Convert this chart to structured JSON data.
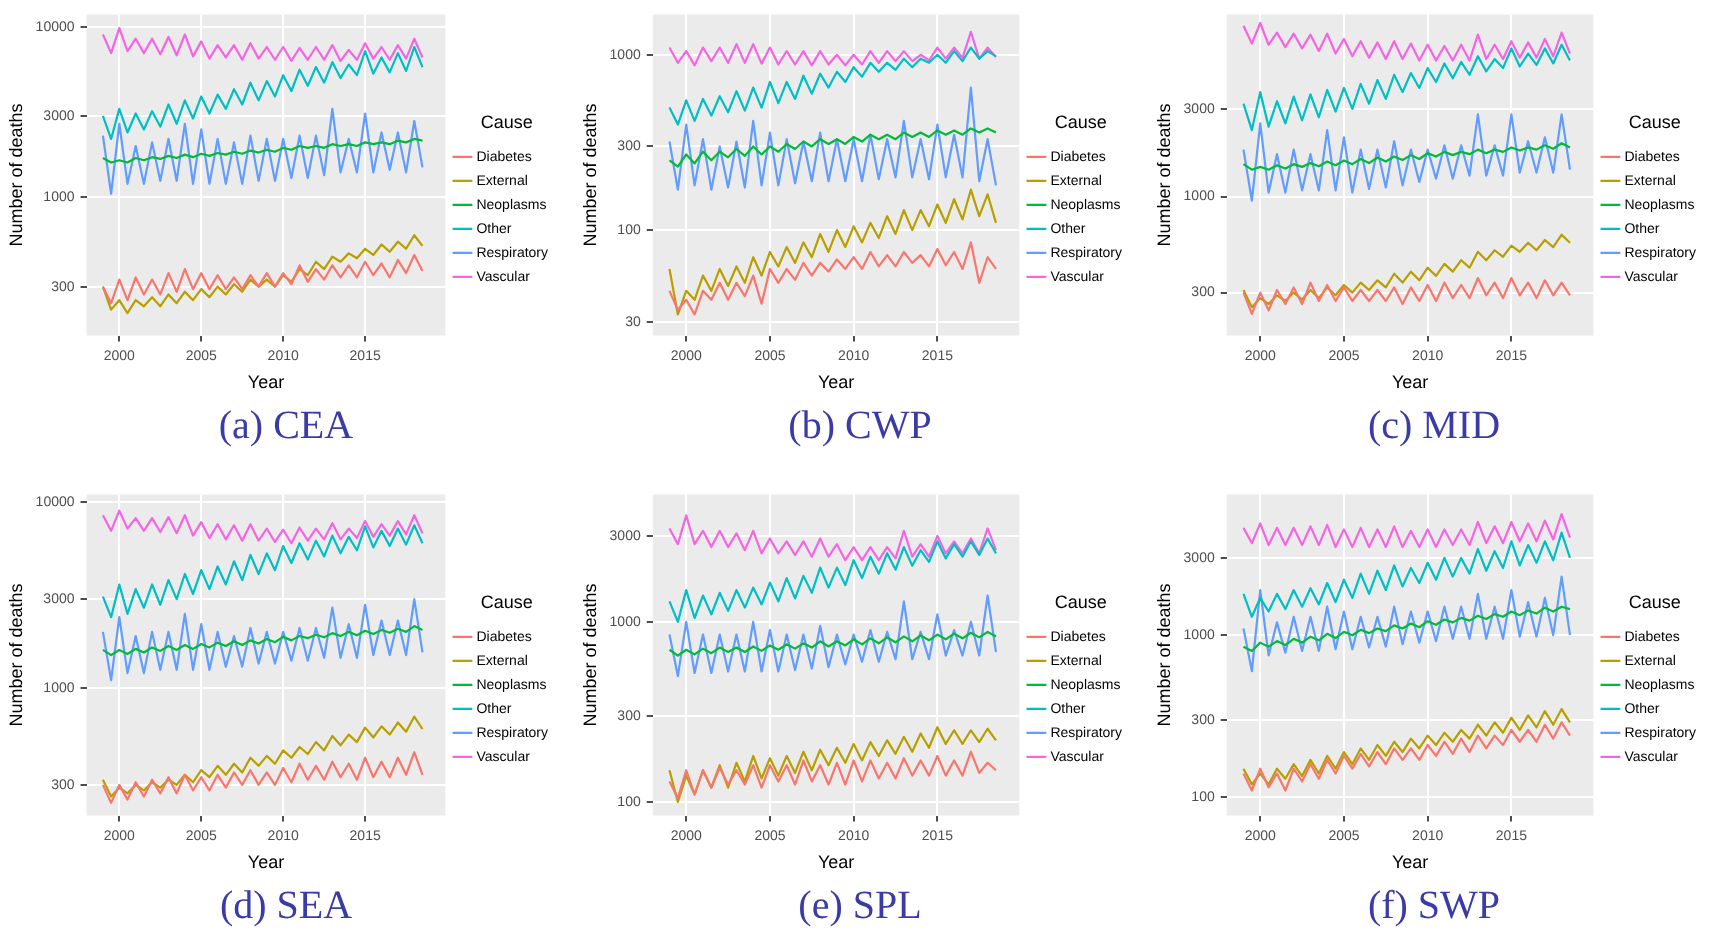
{
  "chart_data": [
    {
      "type": "line",
      "title": "(a) CEA",
      "xlabel": "Year",
      "ylabel": "Number of deaths",
      "legend_title": "Cause",
      "log": "y",
      "grid": true,
      "legend": "right",
      "x": [
        1999,
        1999.5,
        2000,
        2000.5,
        2001,
        2001.5,
        2002,
        2002.5,
        2003,
        2003.5,
        2004,
        2004.5,
        2005,
        2005.5,
        2006,
        2006.5,
        2007,
        2007.5,
        2008,
        2008.5,
        2009,
        2009.5,
        2010,
        2010.5,
        2011,
        2011.5,
        2012,
        2012.5,
        2013,
        2013.5,
        2014,
        2014.5,
        2015,
        2015.5,
        2016,
        2016.5,
        2017,
        2017.5,
        2018,
        2018.5
      ],
      "xlim": [
        1998,
        2019.9
      ],
      "xticks": [
        2000,
        2005,
        2010,
        2015
      ],
      "ylim": [
        155,
        11800
      ],
      "yticks": [
        300,
        1000,
        3000,
        10000
      ],
      "series": [
        {
          "name": "Diabetes",
          "color": "#f8766d",
          "values": [
            300,
            240,
            330,
            250,
            340,
            270,
            330,
            270,
            360,
            280,
            380,
            290,
            360,
            290,
            350,
            290,
            340,
            290,
            350,
            300,
            360,
            300,
            360,
            310,
            400,
            320,
            380,
            330,
            400,
            340,
            400,
            340,
            420,
            350,
            410,
            340,
            430,
            360,
            460,
            370
          ]
        },
        {
          "name": "External",
          "color": "#b79f00",
          "values": [
            300,
            220,
            250,
            210,
            250,
            230,
            260,
            230,
            270,
            240,
            280,
            250,
            290,
            260,
            300,
            270,
            310,
            280,
            330,
            300,
            330,
            300,
            350,
            320,
            380,
            350,
            420,
            380,
            450,
            420,
            470,
            440,
            500,
            460,
            530,
            480,
            550,
            500,
            600,
            520
          ]
        },
        {
          "name": "Neoplasms",
          "color": "#00ba38",
          "values": [
            1700,
            1600,
            1650,
            1600,
            1700,
            1650,
            1720,
            1680,
            1750,
            1700,
            1780,
            1720,
            1800,
            1750,
            1820,
            1780,
            1850,
            1800,
            1880,
            1830,
            1900,
            1850,
            1950,
            1900,
            2000,
            1950,
            2000,
            1950,
            2050,
            2000,
            2050,
            2000,
            2100,
            2050,
            2100,
            2050,
            2150,
            2100,
            2200,
            2150
          ]
        },
        {
          "name": "Other",
          "color": "#00bfc4",
          "values": [
            3000,
            2200,
            3300,
            2400,
            3100,
            2500,
            3200,
            2600,
            3500,
            2700,
            3700,
            2900,
            3900,
            3100,
            4000,
            3300,
            4300,
            3500,
            4700,
            3700,
            4800,
            3900,
            5200,
            4200,
            5600,
            4500,
            5800,
            4700,
            6200,
            5000,
            6000,
            5200,
            7200,
            5300,
            6600,
            5400,
            7000,
            5500,
            7600,
            5800
          ]
        },
        {
          "name": "Respiratory",
          "color": "#619cff",
          "values": [
            2300,
            1050,
            2700,
            1200,
            2000,
            1200,
            2100,
            1250,
            2200,
            1250,
            2700,
            1200,
            2500,
            1200,
            2200,
            1200,
            2100,
            1200,
            2300,
            1250,
            2200,
            1250,
            2200,
            1300,
            2300,
            1300,
            2300,
            1350,
            3300,
            1400,
            2200,
            1400,
            3100,
            1400,
            2400,
            1450,
            2400,
            1400,
            2800,
            1500
          ]
        },
        {
          "name": "Vascular",
          "color": "#f564e3",
          "values": [
            9000,
            7000,
            9800,
            7200,
            8500,
            7000,
            8500,
            6900,
            8700,
            6800,
            9000,
            6700,
            8200,
            6500,
            7800,
            6600,
            7800,
            6400,
            8000,
            6500,
            7600,
            6400,
            7600,
            6300,
            7500,
            6400,
            7600,
            6400,
            7800,
            6300,
            7300,
            6400,
            8000,
            6500,
            7600,
            6400,
            7800,
            6500,
            8500,
            6600
          ]
        }
      ]
    },
    {
      "type": "line",
      "title": "(b) CWP",
      "xlabel": "Year",
      "ylabel": "Number of deaths",
      "legend_title": "Cause",
      "log": "y",
      "grid": true,
      "legend": "right",
      "x": [
        1999,
        1999.5,
        2000,
        2000.5,
        2001,
        2001.5,
        2002,
        2002.5,
        2003,
        2003.5,
        2004,
        2004.5,
        2005,
        2005.5,
        2006,
        2006.5,
        2007,
        2007.5,
        2008,
        2008.5,
        2009,
        2009.5,
        2010,
        2010.5,
        2011,
        2011.5,
        2012,
        2012.5,
        2013,
        2013.5,
        2014,
        2014.5,
        2015,
        2015.5,
        2016,
        2016.5,
        2017,
        2017.5,
        2018,
        2018.5
      ],
      "xlim": [
        1998,
        2019.9
      ],
      "xticks": [
        2000,
        2005,
        2010,
        2015
      ],
      "ylim": [
        25,
        1700
      ],
      "yticks": [
        30,
        100,
        300,
        1000
      ],
      "series": [
        {
          "name": "Diabetes",
          "color": "#f8766d",
          "values": [
            45,
            35,
            40,
            33,
            45,
            40,
            50,
            40,
            50,
            42,
            55,
            38,
            60,
            50,
            60,
            52,
            65,
            55,
            65,
            58,
            68,
            60,
            70,
            60,
            75,
            62,
            72,
            62,
            75,
            65,
            72,
            62,
            78,
            63,
            75,
            60,
            85,
            50,
            70,
            60
          ]
        },
        {
          "name": "External",
          "color": "#b79f00",
          "values": [
            60,
            33,
            45,
            40,
            55,
            45,
            60,
            48,
            62,
            50,
            70,
            55,
            75,
            62,
            80,
            65,
            85,
            70,
            95,
            75,
            100,
            80,
            105,
            85,
            110,
            90,
            120,
            95,
            130,
            100,
            130,
            105,
            140,
            110,
            150,
            115,
            170,
            120,
            160,
            110
          ]
        },
        {
          "name": "Neoplasms",
          "color": "#00ba38",
          "values": [
            250,
            230,
            270,
            240,
            280,
            250,
            280,
            260,
            290,
            265,
            300,
            270,
            300,
            280,
            310,
            290,
            320,
            300,
            330,
            310,
            330,
            310,
            340,
            320,
            350,
            330,
            350,
            330,
            360,
            340,
            360,
            340,
            370,
            350,
            370,
            350,
            380,
            360,
            380,
            360
          ]
        },
        {
          "name": "Other",
          "color": "#00bfc4",
          "values": [
            500,
            400,
            550,
            420,
            560,
            450,
            580,
            470,
            620,
            480,
            650,
            500,
            700,
            530,
            700,
            560,
            760,
            600,
            780,
            650,
            800,
            700,
            850,
            750,
            900,
            800,
            900,
            820,
            950,
            850,
            950,
            900,
            1000,
            900,
            1050,
            920,
            1100,
            950,
            1050,
            980
          ]
        },
        {
          "name": "Respiratory",
          "color": "#619cff",
          "values": [
            320,
            170,
            400,
            180,
            330,
            170,
            300,
            175,
            320,
            175,
            420,
            180,
            360,
            180,
            330,
            185,
            320,
            190,
            360,
            190,
            330,
            190,
            330,
            190,
            350,
            195,
            330,
            200,
            420,
            200,
            330,
            195,
            400,
            200,
            350,
            200,
            650,
            190,
            330,
            180
          ]
        },
        {
          "name": "Vascular",
          "color": "#f564e3",
          "values": [
            1100,
            900,
            1050,
            870,
            1100,
            920,
            1100,
            900,
            1150,
            900,
            1150,
            890,
            1100,
            880,
            1050,
            880,
            1050,
            870,
            1050,
            880,
            1000,
            870,
            1000,
            880,
            1050,
            900,
            1050,
            920,
            1050,
            920,
            1000,
            930,
            1100,
            950,
            1100,
            960,
            1350,
            950,
            1100,
            970
          ]
        }
      ]
    },
    {
      "type": "line",
      "title": "(c) MID",
      "xlabel": "Year",
      "ylabel": "Number of deaths",
      "legend_title": "Cause",
      "log": "y",
      "grid": true,
      "legend": "right",
      "x": [
        1999,
        1999.5,
        2000,
        2000.5,
        2001,
        2001.5,
        2002,
        2002.5,
        2003,
        2003.5,
        2004,
        2004.5,
        2005,
        2005.5,
        2006,
        2006.5,
        2007,
        2007.5,
        2008,
        2008.5,
        2009,
        2009.5,
        2010,
        2010.5,
        2011,
        2011.5,
        2012,
        2012.5,
        2013,
        2013.5,
        2014,
        2014.5,
        2015,
        2015.5,
        2016,
        2016.5,
        2017,
        2017.5,
        2018,
        2018.5
      ],
      "xlim": [
        1998,
        2019.9
      ],
      "xticks": [
        2000,
        2005,
        2010,
        2015
      ],
      "ylim": [
        175,
        9800
      ],
      "yticks": [
        300,
        1000,
        3000
      ],
      "series": [
        {
          "name": "Diabetes",
          "color": "#f8766d",
          "values": [
            300,
            230,
            300,
            240,
            310,
            260,
            320,
            260,
            340,
            270,
            330,
            270,
            320,
            270,
            310,
            270,
            310,
            270,
            320,
            260,
            320,
            270,
            330,
            270,
            340,
            280,
            330,
            280,
            360,
            290,
            340,
            280,
            360,
            290,
            340,
            280,
            350,
            290,
            340,
            290
          ]
        },
        {
          "name": "External",
          "color": "#b79f00",
          "values": [
            310,
            250,
            280,
            260,
            290,
            270,
            300,
            275,
            310,
            280,
            320,
            290,
            330,
            300,
            340,
            310,
            350,
            320,
            380,
            340,
            390,
            350,
            410,
            370,
            430,
            390,
            450,
            410,
            500,
            450,
            510,
            470,
            540,
            500,
            560,
            510,
            580,
            530,
            620,
            560
          ]
        },
        {
          "name": "Neoplasms",
          "color": "#00ba38",
          "values": [
            1500,
            1400,
            1450,
            1400,
            1480,
            1420,
            1500,
            1450,
            1520,
            1460,
            1550,
            1480,
            1570,
            1500,
            1600,
            1520,
            1630,
            1550,
            1650,
            1580,
            1680,
            1600,
            1720,
            1650,
            1750,
            1680,
            1750,
            1700,
            1800,
            1720,
            1800,
            1750,
            1850,
            1780,
            1850,
            1800,
            1900,
            1820,
            1950,
            1850
          ]
        },
        {
          "name": "Other",
          "color": "#00bfc4",
          "values": [
            3200,
            2300,
            3700,
            2400,
            3300,
            2500,
            3500,
            2600,
            3600,
            2700,
            3800,
            2900,
            3900,
            3000,
            4100,
            3200,
            4300,
            3400,
            4600,
            3700,
            4700,
            3900,
            5000,
            4200,
            5300,
            4400,
            5400,
            4600,
            5800,
            4800,
            5600,
            5000,
            6400,
            5100,
            6000,
            5200,
            6400,
            5300,
            6700,
            5500
          ]
        },
        {
          "name": "Respiratory",
          "color": "#619cff",
          "values": [
            1800,
            950,
            2500,
            1050,
            1700,
            1050,
            1800,
            1080,
            1700,
            1080,
            2300,
            1080,
            2100,
            1050,
            1800,
            1100,
            1800,
            1120,
            2000,
            1150,
            1800,
            1200,
            1800,
            1250,
            1900,
            1250,
            1900,
            1300,
            2800,
            1300,
            1900,
            1300,
            2800,
            1350,
            2000,
            1350,
            2100,
            1350,
            2800,
            1400
          ]
        },
        {
          "name": "Vascular",
          "color": "#f564e3",
          "values": [
            8500,
            6800,
            8800,
            6700,
            7800,
            6500,
            7700,
            6400,
            7600,
            6200,
            7700,
            6000,
            7200,
            5800,
            7000,
            5700,
            6900,
            5600,
            7000,
            5600,
            6800,
            5500,
            6700,
            5500,
            6600,
            5500,
            6700,
            5500,
            7600,
            5600,
            6700,
            5600,
            7000,
            5700,
            6900,
            5700,
            7200,
            5800,
            7800,
            6000
          ]
        }
      ]
    },
    {
      "type": "line",
      "title": "(d) SEA",
      "xlabel": "Year",
      "ylabel": "Number of deaths",
      "legend_title": "Cause",
      "log": "y",
      "grid": true,
      "legend": "right",
      "x": [
        1999,
        1999.5,
        2000,
        2000.5,
        2001,
        2001.5,
        2002,
        2002.5,
        2003,
        2003.5,
        2004,
        2004.5,
        2005,
        2005.5,
        2006,
        2006.5,
        2007,
        2007.5,
        2008,
        2008.5,
        2009,
        2009.5,
        2010,
        2010.5,
        2011,
        2011.5,
        2012,
        2012.5,
        2013,
        2013.5,
        2014,
        2014.5,
        2015,
        2015.5,
        2016,
        2016.5,
        2017,
        2017.5,
        2018,
        2018.5
      ],
      "xlim": [
        1998,
        2019.9
      ],
      "xticks": [
        2000,
        2005,
        2010,
        2015
      ],
      "ylim": [
        205,
        11000
      ],
      "yticks": [
        300,
        1000,
        3000,
        10000
      ],
      "series": [
        {
          "name": "Diabetes",
          "color": "#f8766d",
          "values": [
            300,
            240,
            300,
            250,
            310,
            260,
            320,
            270,
            330,
            270,
            340,
            280,
            330,
            280,
            340,
            290,
            350,
            300,
            360,
            300,
            350,
            300,
            370,
            310,
            390,
            320,
            380,
            320,
            400,
            330,
            390,
            320,
            420,
            330,
            400,
            330,
            420,
            340,
            450,
            340
          ]
        },
        {
          "name": "External",
          "color": "#b79f00",
          "values": [
            320,
            260,
            290,
            270,
            300,
            280,
            310,
            290,
            320,
            300,
            340,
            310,
            360,
            330,
            380,
            340,
            390,
            350,
            420,
            380,
            430,
            390,
            460,
            420,
            480,
            440,
            510,
            460,
            550,
            490,
            560,
            510,
            610,
            540,
            620,
            560,
            650,
            580,
            700,
            600
          ]
        },
        {
          "name": "Neoplasms",
          "color": "#00ba38",
          "values": [
            1600,
            1500,
            1600,
            1520,
            1620,
            1550,
            1650,
            1580,
            1680,
            1600,
            1700,
            1620,
            1720,
            1650,
            1750,
            1680,
            1780,
            1700,
            1800,
            1730,
            1830,
            1760,
            1880,
            1800,
            1900,
            1850,
            1930,
            1870,
            1970,
            1900,
            2000,
            1920,
            2030,
            1950,
            2050,
            1980,
            2080,
            2000,
            2150,
            2050
          ]
        },
        {
          "name": "Other",
          "color": "#00bfc4",
          "values": [
            3100,
            2400,
            3600,
            2500,
            3400,
            2700,
            3600,
            2800,
            3800,
            3000,
            4100,
            3200,
            4300,
            3400,
            4500,
            3600,
            4800,
            3800,
            5200,
            4100,
            5300,
            4300,
            5800,
            4700,
            6000,
            4900,
            6200,
            5100,
            6600,
            5300,
            6500,
            5500,
            7400,
            5700,
            7000,
            5800,
            7200,
            5900,
            7500,
            6000
          ]
        },
        {
          "name": "Respiratory",
          "color": "#619cff",
          "values": [
            2000,
            1100,
            2400,
            1200,
            1900,
            1200,
            2000,
            1250,
            2000,
            1250,
            2500,
            1250,
            2200,
            1250,
            2000,
            1300,
            1900,
            1300,
            2100,
            1350,
            2000,
            1350,
            2000,
            1400,
            2100,
            1400,
            2100,
            1450,
            2700,
            1450,
            2200,
            1450,
            2800,
            1500,
            2300,
            1500,
            2300,
            1500,
            3000,
            1550
          ]
        },
        {
          "name": "Vascular",
          "color": "#f564e3",
          "values": [
            8500,
            7000,
            9000,
            7200,
            8200,
            7000,
            8200,
            6900,
            8300,
            6800,
            8500,
            6600,
            7800,
            6400,
            7600,
            6300,
            7500,
            6200,
            7600,
            6200,
            7200,
            6100,
            7100,
            6000,
            7300,
            6200,
            7200,
            6300,
            7700,
            6300,
            7200,
            6400,
            7900,
            6500,
            7600,
            6600,
            7900,
            6700,
            8500,
            6800
          ]
        }
      ]
    },
    {
      "type": "line",
      "title": "(e) SPL",
      "xlabel": "Year",
      "ylabel": "Number of deaths",
      "legend_title": "Cause",
      "log": "y",
      "grid": true,
      "legend": "right",
      "x": [
        1999,
        1999.5,
        2000,
        2000.5,
        2001,
        2001.5,
        2002,
        2002.5,
        2003,
        2003.5,
        2004,
        2004.5,
        2005,
        2005.5,
        2006,
        2006.5,
        2007,
        2007.5,
        2008,
        2008.5,
        2009,
        2009.5,
        2010,
        2010.5,
        2011,
        2011.5,
        2012,
        2012.5,
        2013,
        2013.5,
        2014,
        2014.5,
        2015,
        2015.5,
        2016,
        2016.5,
        2017,
        2017.5,
        2018,
        2018.5
      ],
      "xlim": [
        1998,
        2019.9
      ],
      "xticks": [
        2000,
        2005,
        2010,
        2015
      ],
      "ylim": [
        84,
        5100
      ],
      "yticks": [
        100,
        300,
        1000,
        3000
      ],
      "series": [
        {
          "name": "Diabetes",
          "color": "#f8766d",
          "values": [
            130,
            105,
            150,
            110,
            150,
            120,
            155,
            125,
            150,
            125,
            160,
            120,
            160,
            130,
            160,
            125,
            170,
            130,
            160,
            125,
            165,
            125,
            170,
            130,
            170,
            135,
            165,
            135,
            175,
            140,
            170,
            140,
            180,
            140,
            170,
            140,
            190,
            145,
            165,
            150
          ]
        },
        {
          "name": "External",
          "color": "#b79f00",
          "values": [
            150,
            100,
            140,
            110,
            150,
            120,
            160,
            120,
            165,
            130,
            180,
            135,
            175,
            140,
            180,
            145,
            190,
            150,
            195,
            160,
            200,
            165,
            210,
            170,
            215,
            180,
            220,
            185,
            230,
            190,
            240,
            200,
            260,
            210,
            250,
            210,
            250,
            215,
            255,
            220
          ]
        },
        {
          "name": "Neoplasms",
          "color": "#00ba38",
          "values": [
            700,
            650,
            700,
            660,
            710,
            670,
            720,
            680,
            720,
            680,
            730,
            690,
            740,
            700,
            750,
            710,
            760,
            720,
            780,
            730,
            780,
            740,
            800,
            750,
            810,
            760,
            820,
            770,
            830,
            780,
            840,
            790,
            850,
            800,
            860,
            810,
            870,
            820,
            880,
            830
          ]
        },
        {
          "name": "Other",
          "color": "#00bfc4",
          "values": [
            1300,
            1000,
            1500,
            1050,
            1400,
            1100,
            1450,
            1150,
            1500,
            1200,
            1550,
            1250,
            1650,
            1300,
            1750,
            1350,
            1800,
            1450,
            2000,
            1550,
            2000,
            1600,
            2200,
            1750,
            2300,
            1850,
            2400,
            1950,
            2600,
            2050,
            2500,
            2150,
            2800,
            2250,
            2700,
            2300,
            2800,
            2350,
            2900,
            2400
          ]
        },
        {
          "name": "Respiratory",
          "color": "#619cff",
          "values": [
            850,
            500,
            1000,
            520,
            850,
            520,
            850,
            530,
            850,
            530,
            1000,
            530,
            900,
            530,
            850,
            540,
            850,
            550,
            950,
            560,
            850,
            580,
            850,
            600,
            900,
            600,
            880,
            620,
            1300,
            620,
            880,
            620,
            1100,
            650,
            900,
            650,
            1000,
            650,
            1400,
            680
          ]
        },
        {
          "name": "Vascular",
          "color": "#f564e3",
          "values": [
            3300,
            2700,
            3900,
            2700,
            3200,
            2600,
            3200,
            2600,
            3100,
            2500,
            3200,
            2400,
            2900,
            2400,
            2800,
            2350,
            2800,
            2300,
            2900,
            2300,
            2700,
            2200,
            2600,
            2200,
            2600,
            2200,
            2600,
            2250,
            3200,
            2300,
            2700,
            2300,
            3000,
            2400,
            2800,
            2400,
            2900,
            2400,
            3300,
            2500
          ]
        }
      ]
    },
    {
      "type": "line",
      "title": "(f) SWP",
      "xlabel": "Year",
      "ylabel": "Number of deaths",
      "legend_title": "Cause",
      "log": "y",
      "grid": true,
      "legend": "right",
      "x": [
        1999,
        1999.5,
        2000,
        2000.5,
        2001,
        2001.5,
        2002,
        2002.5,
        2003,
        2003.5,
        2004,
        2004.5,
        2005,
        2005.5,
        2006,
        2006.5,
        2007,
        2007.5,
        2008,
        2008.5,
        2009,
        2009.5,
        2010,
        2010.5,
        2011,
        2011.5,
        2012,
        2012.5,
        2013,
        2013.5,
        2014,
        2014.5,
        2015,
        2015.5,
        2016,
        2016.5,
        2017,
        2017.5,
        2018,
        2018.5
      ],
      "xlim": [
        1998,
        2019.9
      ],
      "xticks": [
        2000,
        2005,
        2010,
        2015
      ],
      "ylim": [
        77,
        7400
      ],
      "yticks": [
        100,
        300,
        1000,
        3000
      ],
      "series": [
        {
          "name": "Diabetes",
          "color": "#f8766d",
          "values": [
            140,
            110,
            150,
            115,
            140,
            110,
            150,
            125,
            160,
            130,
            170,
            140,
            180,
            150,
            185,
            155,
            190,
            160,
            200,
            170,
            200,
            170,
            210,
            180,
            220,
            185,
            230,
            190,
            240,
            200,
            240,
            210,
            260,
            220,
            260,
            220,
            280,
            230,
            290,
            240
          ]
        },
        {
          "name": "External",
          "color": "#b79f00",
          "values": [
            150,
            120,
            140,
            120,
            150,
            130,
            160,
            135,
            170,
            140,
            180,
            150,
            190,
            160,
            200,
            170,
            210,
            180,
            220,
            190,
            230,
            200,
            240,
            210,
            250,
            220,
            260,
            230,
            280,
            240,
            290,
            250,
            310,
            260,
            320,
            270,
            340,
            280,
            350,
            290
          ]
        },
        {
          "name": "Neoplasms",
          "color": "#00ba38",
          "values": [
            850,
            800,
            900,
            850,
            920,
            870,
            950,
            900,
            980,
            930,
            1020,
            960,
            1050,
            1000,
            1080,
            1030,
            1100,
            1060,
            1150,
            1100,
            1180,
            1120,
            1220,
            1160,
            1250,
            1200,
            1280,
            1230,
            1320,
            1260,
            1350,
            1300,
            1400,
            1330,
            1420,
            1360,
            1480,
            1400,
            1500,
            1450
          ]
        },
        {
          "name": "Other",
          "color": "#00bfc4",
          "values": [
            1800,
            1300,
            1700,
            1400,
            1800,
            1450,
            1900,
            1500,
            1950,
            1550,
            2100,
            1600,
            2200,
            1700,
            2400,
            1800,
            2500,
            1900,
            2700,
            2000,
            2600,
            2100,
            2800,
            2200,
            3000,
            2300,
            3000,
            2400,
            3400,
            2500,
            3300,
            2600,
            3800,
            2700,
            3600,
            2800,
            3800,
            2900,
            4300,
            3000
          ]
        },
        {
          "name": "Respiratory",
          "color": "#619cff",
          "values": [
            1100,
            600,
            1900,
            750,
            1200,
            780,
            1300,
            800,
            1300,
            800,
            1500,
            820,
            1400,
            820,
            1300,
            840,
            1300,
            850,
            1500,
            880,
            1400,
            900,
            1400,
            920,
            1500,
            950,
            1500,
            950,
            1800,
            950,
            1500,
            950,
            1900,
            980,
            1600,
            980,
            1700,
            1000,
            2300,
            1000
          ]
        },
        {
          "name": "Vascular",
          "color": "#f564e3",
          "values": [
            4600,
            3700,
            4900,
            3600,
            4600,
            3600,
            4600,
            3600,
            4700,
            3600,
            4800,
            3500,
            4500,
            3500,
            4600,
            3500,
            4500,
            3500,
            4700,
            3500,
            4400,
            3500,
            4500,
            3500,
            4500,
            3600,
            4500,
            3600,
            5000,
            3700,
            4700,
            3700,
            5000,
            3800,
            4900,
            3800,
            5100,
            3900,
            5600,
            4000
          ]
        }
      ]
    }
  ]
}
